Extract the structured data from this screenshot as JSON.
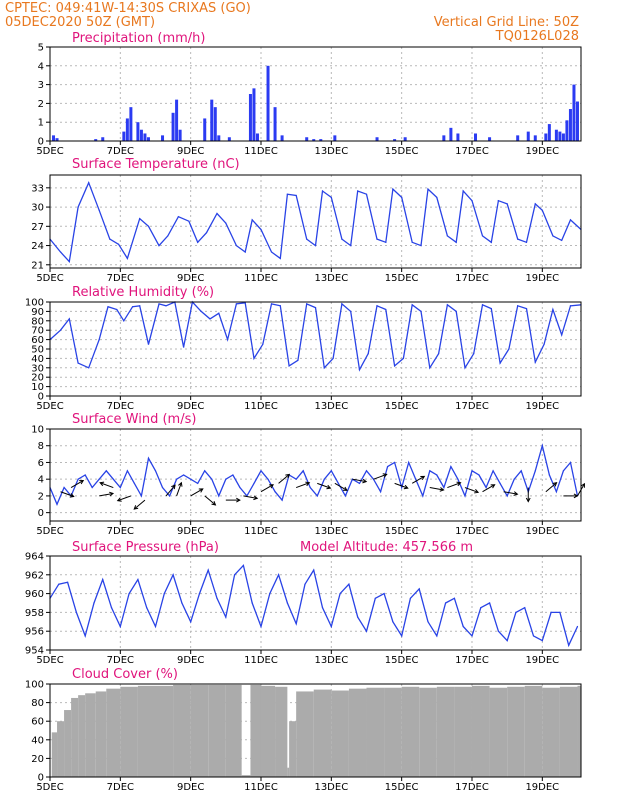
{
  "header": {
    "line1_left": "CPTEC:   049:41W-14:30S   CRIXAS (GO)",
    "line2_left": "05DEC2020 50Z (GMT)",
    "line1_right": "Vertical Grid Line: 50Z",
    "line2_right": "TQ0126L028"
  },
  "colors": {
    "header": "#e8781f",
    "panel_title": "#e0147c",
    "line": "#2943e6",
    "bar": "#2b3bf2",
    "cloud": "#ababab",
    "arrow": "#000000",
    "grid": "#b9b9b9"
  },
  "x_axis": {
    "tick_labels": [
      "5DEC",
      "7DEC",
      "9DEC",
      "11DEC",
      "13DEC",
      "15DEC",
      "17DEC",
      "19DEC"
    ],
    "tick_days": [
      5,
      7,
      9,
      11,
      13,
      15,
      17,
      19
    ],
    "range_days": [
      5,
      20.1
    ]
  },
  "chart_data": [
    {
      "type": "bar",
      "title": "Precipitation (mm/h)",
      "ylim": [
        0,
        5
      ],
      "yticks": [
        0,
        1,
        2,
        3,
        4,
        5
      ],
      "x_days": [
        5.1,
        5.2,
        6.3,
        6.5,
        7.1,
        7.2,
        7.3,
        7.5,
        7.6,
        7.7,
        7.8,
        8.2,
        8.5,
        8.6,
        8.7,
        9.4,
        9.6,
        9.7,
        9.8,
        10.1,
        10.7,
        10.8,
        10.9,
        11.2,
        11.4,
        11.6,
        12.3,
        12.5,
        12.7,
        13.1,
        14.3,
        14.8,
        15.1,
        16.2,
        16.4,
        16.6,
        17.1,
        17.5,
        18.3,
        18.6,
        18.8,
        19.1,
        19.2,
        19.4,
        19.5,
        19.6,
        19.7,
        19.8,
        19.9,
        20.0
      ],
      "values": [
        0.3,
        0.15,
        0.1,
        0.2,
        0.5,
        1.2,
        1.8,
        1.0,
        0.6,
        0.4,
        0.2,
        0.3,
        1.5,
        2.2,
        0.6,
        1.2,
        2.2,
        1.8,
        0.3,
        0.2,
        2.5,
        2.8,
        0.4,
        4.0,
        1.8,
        0.3,
        0.2,
        0.1,
        0.1,
        0.3,
        0.2,
        0.1,
        0.2,
        0.3,
        0.7,
        0.4,
        0.4,
        0.2,
        0.3,
        0.5,
        0.3,
        0.4,
        0.9,
        0.6,
        0.5,
        0.4,
        1.1,
        1.7,
        3.0,
        2.1
      ]
    },
    {
      "type": "line",
      "title": "Surface Temperature (nC)",
      "ylim": [
        20.5,
        35
      ],
      "yticks": [
        21,
        24,
        27,
        30,
        33
      ],
      "x_days": [
        5.0,
        5.3,
        5.55,
        5.8,
        6.1,
        6.4,
        6.7,
        6.95,
        7.2,
        7.55,
        7.8,
        8.1,
        8.35,
        8.65,
        8.95,
        9.2,
        9.45,
        9.75,
        10.0,
        10.3,
        10.55,
        10.75,
        11.0,
        11.3,
        11.55,
        11.75,
        12.0,
        12.3,
        12.55,
        12.75,
        13.0,
        13.3,
        13.55,
        13.75,
        14.0,
        14.3,
        14.55,
        14.75,
        15.0,
        15.3,
        15.55,
        15.75,
        16.0,
        16.3,
        16.55,
        16.75,
        17.0,
        17.3,
        17.55,
        17.75,
        18.0,
        18.3,
        18.55,
        18.8,
        19.0,
        19.3,
        19.55,
        19.8,
        20.1
      ],
      "values": [
        25.0,
        23.0,
        21.5,
        30.0,
        33.8,
        29.5,
        25.0,
        24.2,
        22.0,
        28.2,
        27.0,
        24.0,
        25.5,
        28.5,
        27.8,
        24.5,
        26.0,
        29.0,
        27.5,
        24.0,
        23.0,
        28.0,
        26.5,
        23.0,
        22.0,
        32.0,
        31.8,
        25.0,
        24.0,
        32.5,
        31.5,
        25.0,
        24.0,
        32.5,
        32.0,
        25.0,
        24.5,
        32.8,
        31.5,
        24.5,
        24.0,
        32.8,
        31.5,
        25.5,
        24.5,
        32.5,
        31.0,
        25.5,
        24.5,
        31.0,
        30.5,
        25.0,
        24.5,
        30.5,
        29.5,
        25.5,
        24.8,
        28.0,
        26.5
      ]
    },
    {
      "type": "line",
      "title": "Relative Humidity (%)",
      "ylim": [
        0,
        100
      ],
      "yticks": [
        0,
        10,
        20,
        30,
        40,
        50,
        60,
        70,
        80,
        90,
        100
      ],
      "x_days": [
        5.0,
        5.3,
        5.55,
        5.8,
        6.1,
        6.4,
        6.65,
        6.9,
        7.1,
        7.35,
        7.55,
        7.8,
        8.1,
        8.3,
        8.55,
        8.8,
        9.05,
        9.3,
        9.55,
        9.8,
        10.05,
        10.3,
        10.55,
        10.8,
        11.05,
        11.3,
        11.55,
        11.8,
        12.05,
        12.3,
        12.55,
        12.8,
        13.05,
        13.3,
        13.55,
        13.8,
        14.05,
        14.3,
        14.55,
        14.8,
        15.05,
        15.3,
        15.55,
        15.8,
        16.05,
        16.3,
        16.55,
        16.8,
        17.05,
        17.3,
        17.55,
        17.8,
        18.05,
        18.3,
        18.55,
        18.8,
        19.05,
        19.3,
        19.55,
        19.8,
        20.1
      ],
      "values": [
        60,
        70,
        82,
        35,
        30,
        60,
        95,
        92,
        80,
        95,
        96,
        55,
        98,
        96,
        100,
        52,
        100,
        90,
        82,
        88,
        60,
        98,
        99,
        40,
        55,
        98,
        96,
        32,
        38,
        98,
        94,
        30,
        40,
        98,
        90,
        28,
        45,
        96,
        92,
        32,
        40,
        97,
        90,
        30,
        45,
        97,
        90,
        30,
        45,
        97,
        93,
        35,
        50,
        96,
        93,
        36,
        55,
        92,
        65,
        96,
        97
      ]
    },
    {
      "type": "line",
      "title": "Surface Wind (m/s)",
      "ylim": [
        -1,
        10
      ],
      "yticks": [
        0,
        2,
        4,
        6,
        8,
        10
      ],
      "x_days": [
        5.0,
        5.2,
        5.4,
        5.6,
        5.8,
        6.0,
        6.2,
        6.4,
        6.6,
        6.8,
        7.0,
        7.2,
        7.4,
        7.6,
        7.8,
        8.0,
        8.2,
        8.4,
        8.6,
        8.8,
        9.0,
        9.2,
        9.4,
        9.6,
        9.8,
        10.0,
        10.2,
        10.4,
        10.6,
        10.8,
        11.0,
        11.2,
        11.4,
        11.6,
        11.8,
        12.0,
        12.2,
        12.4,
        12.6,
        12.8,
        13.0,
        13.2,
        13.4,
        13.6,
        13.8,
        14.0,
        14.2,
        14.4,
        14.6,
        14.8,
        15.0,
        15.2,
        15.4,
        15.6,
        15.8,
        16.0,
        16.2,
        16.4,
        16.6,
        16.8,
        17.0,
        17.2,
        17.4,
        17.6,
        17.8,
        18.0,
        18.2,
        18.4,
        18.6,
        18.8,
        19.0,
        19.2,
        19.4,
        19.6,
        19.8,
        20.0
      ],
      "values": [
        3.0,
        1.0,
        3.0,
        2.0,
        4.0,
        4.5,
        3.0,
        4.0,
        5.0,
        4.0,
        3.0,
        5.0,
        3.5,
        2.0,
        6.5,
        5.0,
        3.0,
        2.0,
        4.0,
        4.5,
        4.0,
        3.5,
        5.0,
        4.0,
        2.0,
        4.0,
        4.5,
        3.0,
        2.0,
        3.5,
        5.0,
        4.0,
        2.5,
        1.5,
        4.5,
        4.0,
        5.0,
        3.0,
        2.0,
        4.0,
        5.0,
        3.5,
        2.0,
        4.0,
        3.5,
        5.0,
        4.0,
        2.5,
        5.5,
        6.0,
        3.0,
        6.0,
        4.0,
        2.0,
        5.0,
        4.5,
        3.0,
        5.5,
        4.0,
        2.0,
        5.0,
        4.5,
        3.0,
        5.0,
        3.5,
        2.0,
        4.0,
        5.0,
        2.5,
        5.0,
        8.0,
        4.5,
        2.5,
        5.0,
        6.0,
        2.0
      ],
      "arrows": [
        {
          "day": 5.3,
          "speed": 2.5,
          "dir_deg": 110
        },
        {
          "day": 5.6,
          "speed": 3.0,
          "dir_deg": 60
        },
        {
          "day": 6.4,
          "speed": 2.0,
          "dir_deg": 80
        },
        {
          "day": 6.8,
          "speed": 3.0,
          "dir_deg": 290
        },
        {
          "day": 7.3,
          "speed": 2.0,
          "dir_deg": 250
        },
        {
          "day": 7.7,
          "speed": 1.5,
          "dir_deg": 230
        },
        {
          "day": 8.3,
          "speed": 2.0,
          "dir_deg": 40
        },
        {
          "day": 8.6,
          "speed": 2.0,
          "dir_deg": 20
        },
        {
          "day": 9.0,
          "speed": 2.0,
          "dir_deg": 60
        },
        {
          "day": 9.4,
          "speed": 2.0,
          "dir_deg": 130
        },
        {
          "day": 10.0,
          "speed": 1.5,
          "dir_deg": 90
        },
        {
          "day": 10.5,
          "speed": 2.0,
          "dir_deg": 100
        },
        {
          "day": 11.0,
          "speed": 2.5,
          "dir_deg": 60
        },
        {
          "day": 11.5,
          "speed": 3.5,
          "dir_deg": 50
        },
        {
          "day": 12.0,
          "speed": 3.0,
          "dir_deg": 70
        },
        {
          "day": 12.6,
          "speed": 3.5,
          "dir_deg": 110
        },
        {
          "day": 13.1,
          "speed": 3.5,
          "dir_deg": 120
        },
        {
          "day": 13.6,
          "speed": 4.0,
          "dir_deg": 100
        },
        {
          "day": 14.2,
          "speed": 4.0,
          "dir_deg": 70
        },
        {
          "day": 14.8,
          "speed": 3.5,
          "dir_deg": 110
        },
        {
          "day": 15.3,
          "speed": 3.5,
          "dir_deg": 60
        },
        {
          "day": 15.8,
          "speed": 3.0,
          "dir_deg": 100
        },
        {
          "day": 16.3,
          "speed": 3.0,
          "dir_deg": 70
        },
        {
          "day": 16.8,
          "speed": 3.0,
          "dir_deg": 110
        },
        {
          "day": 17.3,
          "speed": 2.5,
          "dir_deg": 60
        },
        {
          "day": 17.9,
          "speed": 2.5,
          "dir_deg": 100
        },
        {
          "day": 18.6,
          "speed": 3.0,
          "dir_deg": 180
        },
        {
          "day": 19.1,
          "speed": 2.5,
          "dir_deg": 50
        },
        {
          "day": 19.6,
          "speed": 2.0,
          "dir_deg": 90
        },
        {
          "day": 20.0,
          "speed": 2.0,
          "dir_deg": 30
        }
      ]
    },
    {
      "type": "line",
      "title": "Surface Pressure (hPa)",
      "subtitle": "Model Altitude: 457.566 m",
      "ylim": [
        954,
        964
      ],
      "yticks": [
        954,
        956,
        958,
        960,
        962,
        964
      ],
      "x_days": [
        5.0,
        5.25,
        5.5,
        5.75,
        6.0,
        6.25,
        6.5,
        6.75,
        7.0,
        7.25,
        7.5,
        7.75,
        8.0,
        8.25,
        8.5,
        8.75,
        9.0,
        9.25,
        9.5,
        9.75,
        10.0,
        10.25,
        10.5,
        10.75,
        11.0,
        11.25,
        11.5,
        11.75,
        12.0,
        12.25,
        12.5,
        12.75,
        13.0,
        13.25,
        13.5,
        13.75,
        14.0,
        14.25,
        14.5,
        14.75,
        15.0,
        15.25,
        15.5,
        15.75,
        16.0,
        16.25,
        16.5,
        16.75,
        17.0,
        17.25,
        17.5,
        17.75,
        18.0,
        18.25,
        18.5,
        18.75,
        19.0,
        19.25,
        19.5,
        19.75,
        20.0
      ],
      "values": [
        959.5,
        961.0,
        961.2,
        958.0,
        955.5,
        959.0,
        961.5,
        958.5,
        956.5,
        960.0,
        961.5,
        958.5,
        956.5,
        960.0,
        962.0,
        959.0,
        957.0,
        960.0,
        962.5,
        959.5,
        957.5,
        962.0,
        963.0,
        959.0,
        956.5,
        960.0,
        962.0,
        959.0,
        956.8,
        961.0,
        962.5,
        958.5,
        956.5,
        960.0,
        961.0,
        957.5,
        956.0,
        959.5,
        960.0,
        957.0,
        955.5,
        959.5,
        960.5,
        957.0,
        955.5,
        959.0,
        959.5,
        956.5,
        955.5,
        958.5,
        959.0,
        956.0,
        955.0,
        958.0,
        958.5,
        955.5,
        955.0,
        958.0,
        958.0,
        954.5,
        956.5
      ]
    },
    {
      "type": "bar",
      "title": "Cloud Cover (%)",
      "ylim": [
        0,
        100
      ],
      "yticks": [
        0,
        20,
        40,
        60,
        80,
        100
      ],
      "x_days": [
        5.05,
        5.2,
        5.4,
        5.6,
        5.8,
        6.0,
        6.3,
        6.6,
        7.0,
        7.5,
        8.0,
        8.5,
        9.0,
        9.5,
        10.0,
        10.45,
        10.7,
        11.0,
        11.4,
        11.75,
        11.8,
        12.0,
        12.5,
        13.0,
        13.5,
        14.0,
        14.5,
        15.0,
        15.5,
        16.0,
        16.5,
        17.0,
        17.5,
        18.0,
        18.5,
        19.0,
        19.5,
        20.0
      ],
      "values": [
        48,
        60,
        72,
        85,
        88,
        90,
        92,
        95,
        97,
        98,
        98,
        99,
        99,
        99,
        99,
        2,
        99,
        98,
        97,
        10,
        60,
        92,
        94,
        93,
        95,
        96,
        96,
        97,
        96,
        97,
        97,
        98,
        96,
        97,
        98,
        96,
        97,
        98
      ]
    }
  ]
}
